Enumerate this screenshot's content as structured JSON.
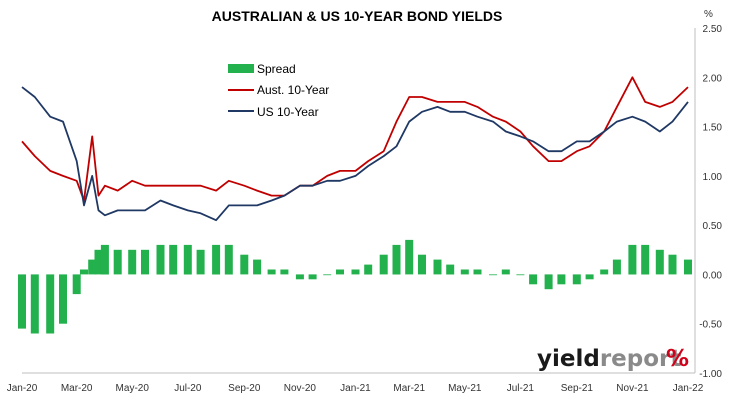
{
  "chart_data": {
    "type": "line",
    "title": "AUSTRALIAN & US 10-YEAR BOND YIELDS",
    "unit": "%",
    "xlabel": "",
    "ylabel": "",
    "x_ticks": [
      "Jan-20",
      "Mar-20",
      "May-20",
      "Jul-20",
      "Sep-20",
      "Nov-20",
      "Jan-21",
      "Mar-21",
      "May-21",
      "Jul-21",
      "Sep-21",
      "Nov-21",
      "Jan-22"
    ],
    "ylim": [
      -1.0,
      2.5
    ],
    "y_ticks": [
      "2.50",
      "2.00",
      "1.50",
      "1.00",
      "0.50",
      "0.00",
      "-0.50",
      "-1.00"
    ],
    "grid": false,
    "legend_position": "top-center",
    "colors": {
      "spread": "#22b14c",
      "aus": "#c00000",
      "us": "#1f3864"
    },
    "x": [
      "2020-01-01",
      "2020-01-15",
      "2020-02-01",
      "2020-02-15",
      "2020-03-01",
      "2020-03-09",
      "2020-03-18",
      "2020-03-25",
      "2020-04-01",
      "2020-04-15",
      "2020-05-01",
      "2020-05-15",
      "2020-06-01",
      "2020-06-15",
      "2020-07-01",
      "2020-07-15",
      "2020-08-01",
      "2020-08-15",
      "2020-09-01",
      "2020-09-15",
      "2020-10-01",
      "2020-10-15",
      "2020-11-01",
      "2020-11-15",
      "2020-12-01",
      "2020-12-15",
      "2021-01-01",
      "2021-01-15",
      "2021-02-01",
      "2021-02-15",
      "2021-03-01",
      "2021-03-15",
      "2021-04-01",
      "2021-04-15",
      "2021-05-01",
      "2021-05-15",
      "2021-06-01",
      "2021-06-15",
      "2021-07-01",
      "2021-07-15",
      "2021-08-01",
      "2021-08-15",
      "2021-09-01",
      "2021-09-15",
      "2021-10-01",
      "2021-10-15",
      "2021-11-01",
      "2021-11-15",
      "2021-12-01",
      "2021-12-15",
      "2022-01-01"
    ],
    "series": [
      {
        "name": "Spread",
        "kind": "bar",
        "values": [
          -0.55,
          -0.6,
          -0.6,
          -0.5,
          -0.2,
          0.05,
          0.15,
          0.25,
          0.3,
          0.25,
          0.25,
          0.25,
          0.3,
          0.3,
          0.3,
          0.25,
          0.3,
          0.3,
          0.2,
          0.15,
          0.05,
          0.05,
          -0.05,
          -0.05,
          0.0,
          0.05,
          0.05,
          0.1,
          0.2,
          0.3,
          0.35,
          0.2,
          0.15,
          0.1,
          0.05,
          0.05,
          0.0,
          0.05,
          0.0,
          -0.1,
          -0.15,
          -0.1,
          -0.1,
          -0.05,
          0.05,
          0.15,
          0.3,
          0.3,
          0.25,
          0.2,
          0.15
        ]
      },
      {
        "name": "Aust. 10-Year",
        "kind": "line",
        "values": [
          1.35,
          1.2,
          1.05,
          1.0,
          0.95,
          0.75,
          1.4,
          0.8,
          0.9,
          0.85,
          0.95,
          0.9,
          0.9,
          0.9,
          0.9,
          0.9,
          0.85,
          0.95,
          0.9,
          0.85,
          0.8,
          0.8,
          0.9,
          0.9,
          1.0,
          1.05,
          1.05,
          1.15,
          1.25,
          1.55,
          1.8,
          1.8,
          1.75,
          1.75,
          1.75,
          1.7,
          1.6,
          1.55,
          1.45,
          1.3,
          1.15,
          1.15,
          1.25,
          1.3,
          1.45,
          1.7,
          2.0,
          1.75,
          1.7,
          1.75,
          1.9
        ]
      },
      {
        "name": "US 10-Year",
        "kind": "line",
        "values": [
          1.9,
          1.8,
          1.6,
          1.55,
          1.15,
          0.7,
          1.0,
          0.65,
          0.6,
          0.65,
          0.65,
          0.65,
          0.75,
          0.7,
          0.65,
          0.62,
          0.55,
          0.7,
          0.7,
          0.7,
          0.75,
          0.8,
          0.9,
          0.9,
          0.95,
          0.95,
          1.0,
          1.1,
          1.2,
          1.3,
          1.55,
          1.65,
          1.7,
          1.65,
          1.65,
          1.6,
          1.55,
          1.45,
          1.4,
          1.35,
          1.25,
          1.25,
          1.35,
          1.35,
          1.45,
          1.55,
          1.6,
          1.55,
          1.45,
          1.55,
          1.75
        ]
      }
    ]
  },
  "brand": {
    "part1": "yield",
    "part2": "report",
    "symbol": "%"
  }
}
